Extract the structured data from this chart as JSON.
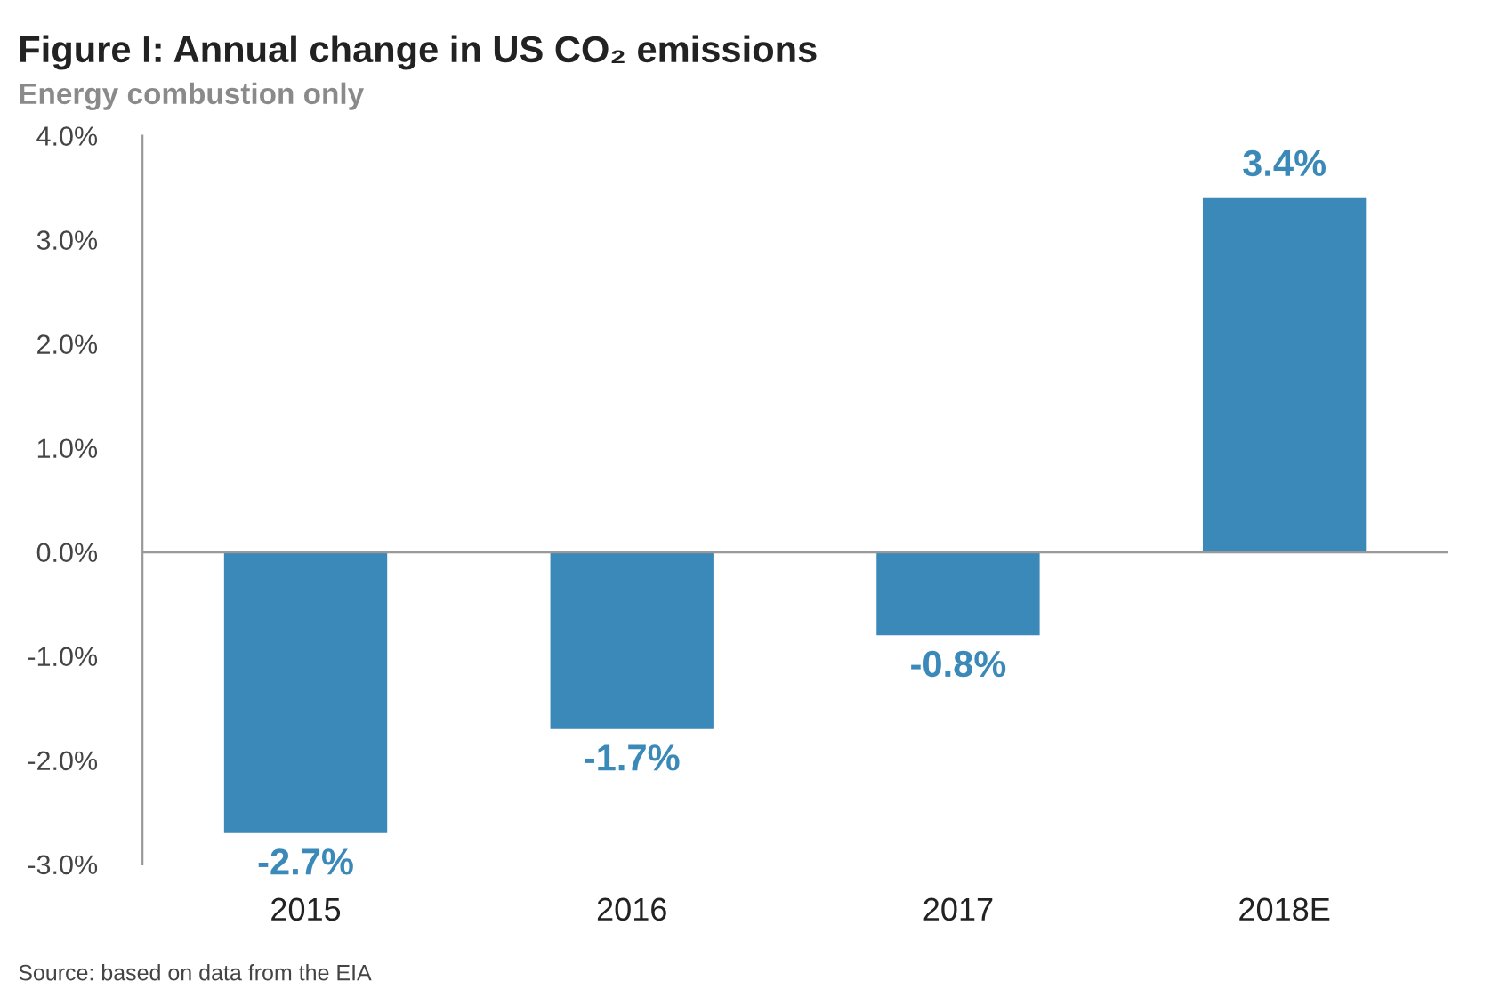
{
  "chart_data": {
    "type": "bar",
    "title": "Figure I: Annual change in US CO₂ emissions",
    "subtitle": "Energy combustion only",
    "categories": [
      "2015",
      "2016",
      "2017",
      "2018E"
    ],
    "values": [
      -2.7,
      -1.7,
      -0.8,
      3.4
    ],
    "value_labels": [
      "-2.7%",
      "-1.7%",
      "-0.8%",
      "3.4%"
    ],
    "color": "#3a89b8",
    "ylim": [
      -3.0,
      4.0
    ],
    "yticks": [
      {
        "value": -3.0,
        "label": "-3.0%"
      },
      {
        "value": -2.0,
        "label": "-2.0%"
      },
      {
        "value": -1.0,
        "label": "-1.0%"
      },
      {
        "value": 0.0,
        "label": "0.0%"
      },
      {
        "value": 1.0,
        "label": "1.0%"
      },
      {
        "value": 2.0,
        "label": "2.0%"
      },
      {
        "value": 3.0,
        "label": "3.0%"
      },
      {
        "value": 4.0,
        "label": "4.0%"
      }
    ],
    "ref_lines": [
      {
        "axis": "y",
        "value": 0.0,
        "color": "#999999"
      }
    ],
    "annotations": [
      "Source: based on data from the EIA"
    ]
  }
}
